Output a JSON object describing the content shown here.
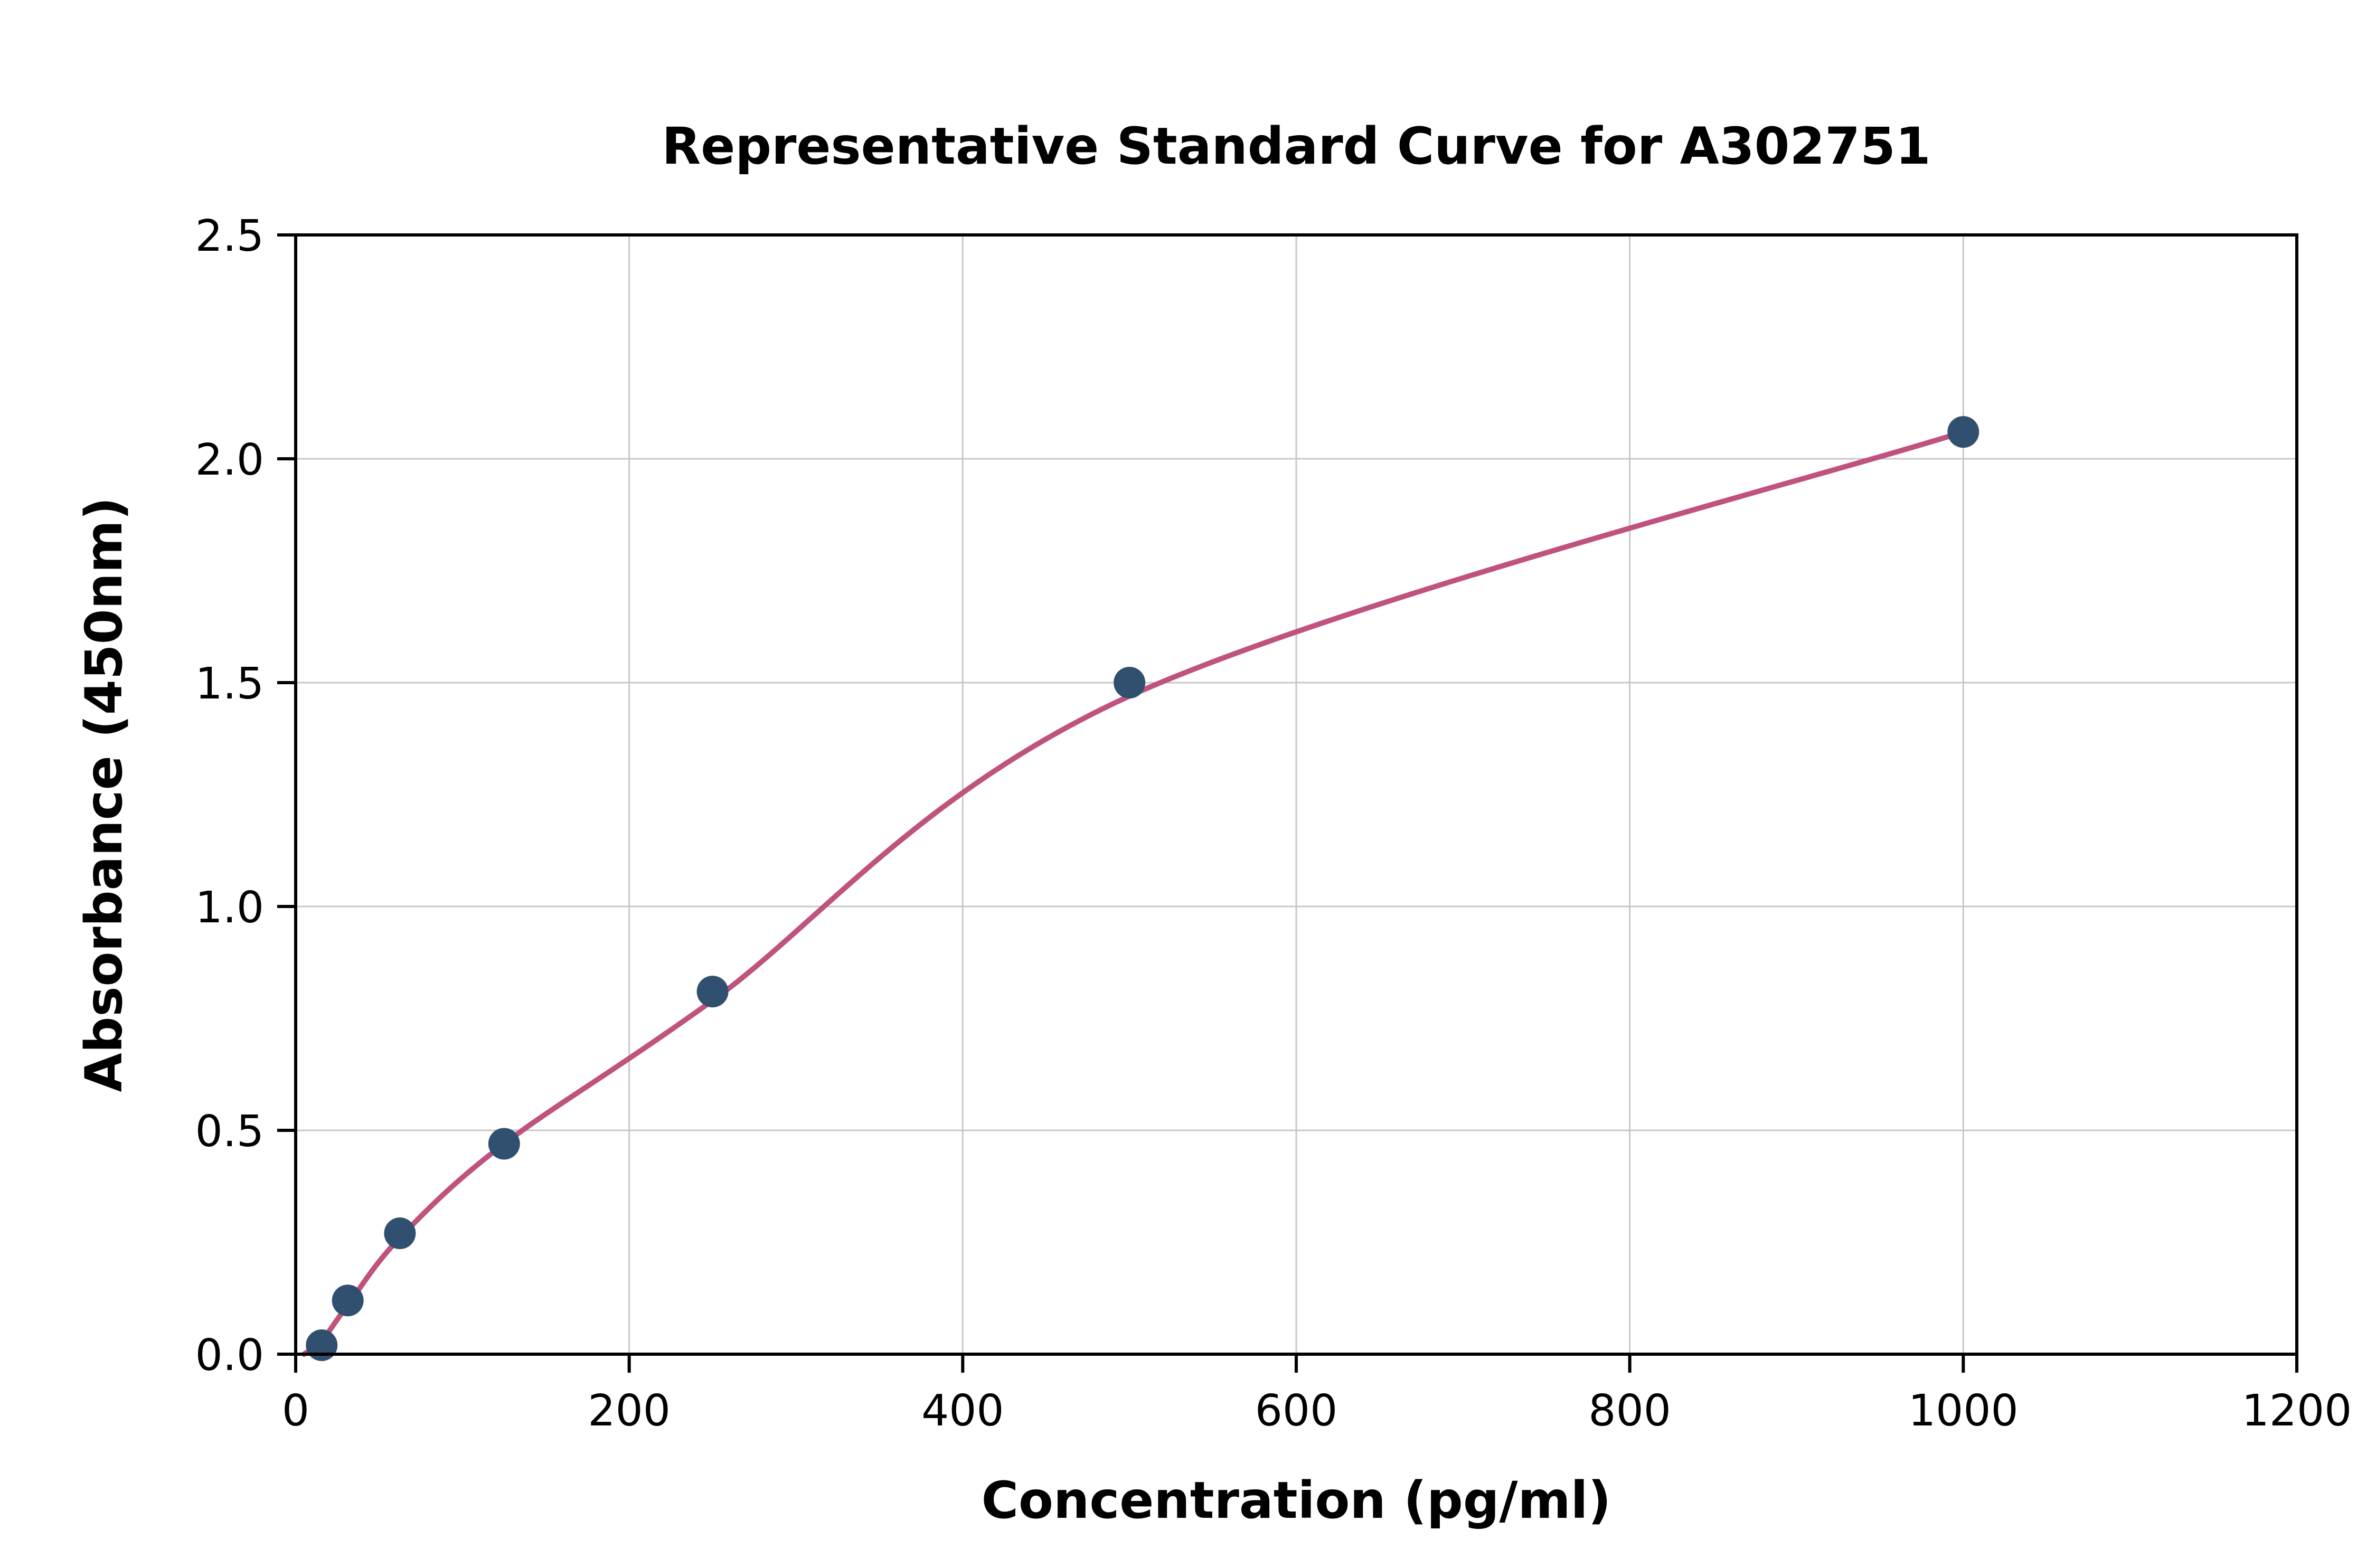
{
  "chart_data": {
    "type": "scatter",
    "title": "Representative Standard Curve for A302751",
    "xlabel": "Concentration (pg/ml)",
    "ylabel": "Absorbance (450nm)",
    "xlim": [
      0,
      1200
    ],
    "ylim": [
      0,
      2.5
    ],
    "x_ticks": [
      "0",
      "200",
      "400",
      "600",
      "800",
      "1000",
      "1200"
    ],
    "x_tick_values": [
      0,
      200,
      400,
      600,
      800,
      1000,
      1200
    ],
    "y_ticks": [
      "0.0",
      "0.5",
      "1.0",
      "1.5",
      "2.0",
      "2.5"
    ],
    "y_tick_values": [
      0,
      0.5,
      1.0,
      1.5,
      2.0,
      2.5
    ],
    "grid": true,
    "legend_position": "none",
    "series": [
      {
        "name": "standard-points",
        "type": "scatter",
        "x": [
          15.6,
          31.25,
          62.5,
          125,
          250,
          500,
          1000
        ],
        "y": [
          0.02,
          0.12,
          0.27,
          0.47,
          0.81,
          1.5,
          2.06
        ]
      },
      {
        "name": "fitted-curve",
        "type": "line",
        "x": [
          5,
          15.6,
          31.25,
          62.5,
          125,
          250,
          500,
          1000
        ],
        "y": [
          0.0,
          0.03,
          0.11,
          0.26,
          0.47,
          0.79,
          1.47,
          2.06
        ]
      }
    ],
    "colors": {
      "marker": "#31506f",
      "curve": "#c0527e",
      "grid": "#c8c8c8",
      "axis": "#000000",
      "background": "#ffffff"
    }
  }
}
